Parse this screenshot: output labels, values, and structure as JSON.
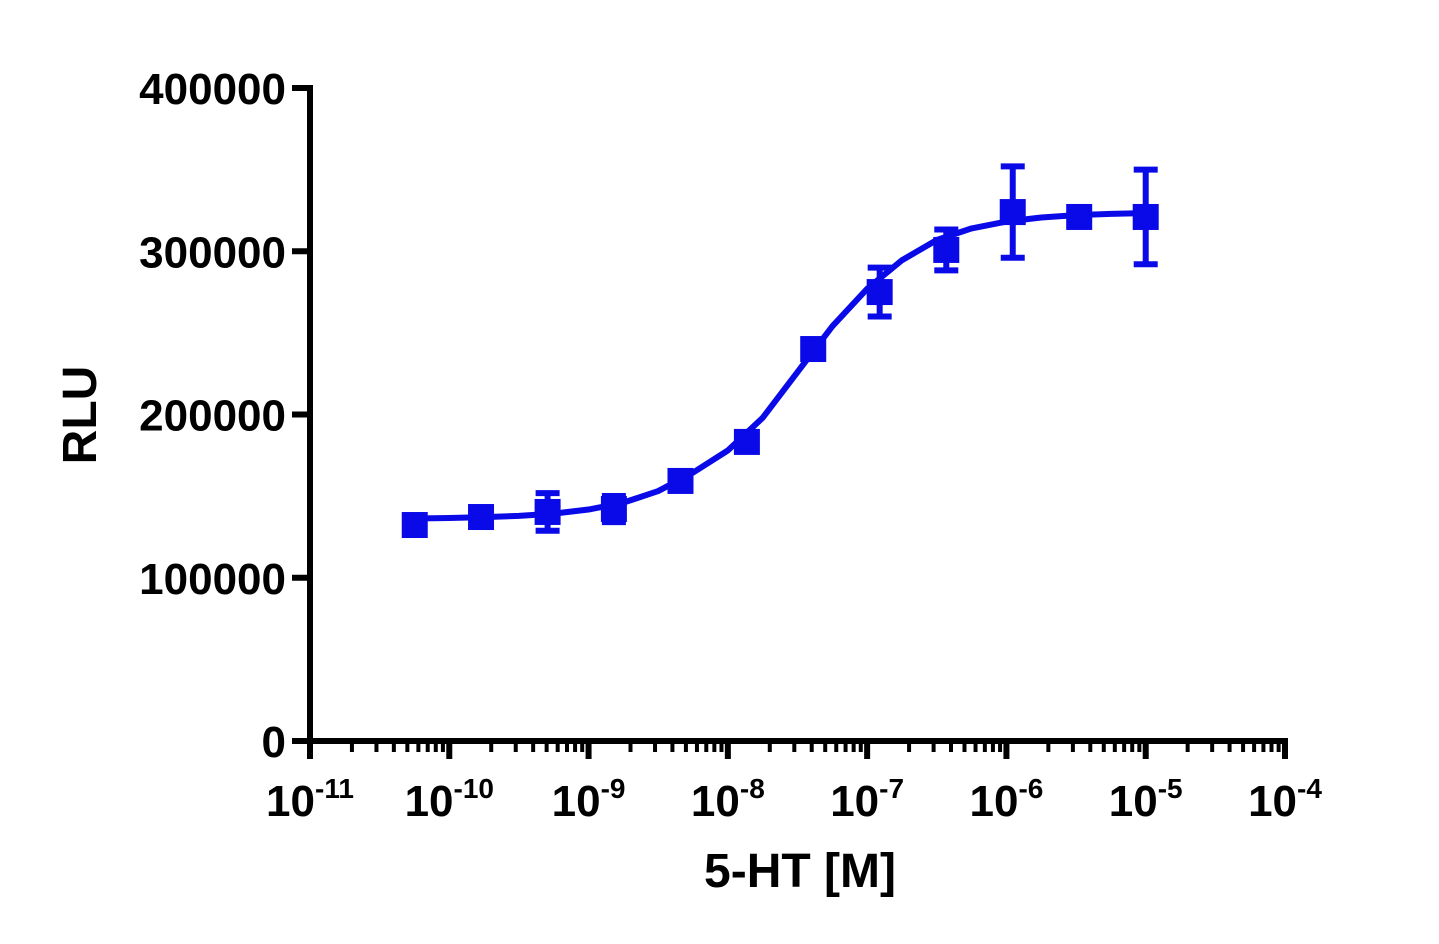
{
  "chart_data": {
    "type": "dose-response",
    "xlabel": "5-HT [M]",
    "ylabel": "RLU",
    "xscale": "log",
    "xlim": [
      1e-11,
      0.0001
    ],
    "xticks": [
      {
        "value": 1e-11,
        "label": "10",
        "exponent": "-11"
      },
      {
        "value": 1e-10,
        "label": "10",
        "exponent": "-10"
      },
      {
        "value": 1e-09,
        "label": "10",
        "exponent": "-9"
      },
      {
        "value": 1e-08,
        "label": "10",
        "exponent": "-8"
      },
      {
        "value": 1e-07,
        "label": "10",
        "exponent": "-7"
      },
      {
        "value": 1e-06,
        "label": "10",
        "exponent": "-6"
      },
      {
        "value": 1e-05,
        "label": "10",
        "exponent": "-5"
      },
      {
        "value": 0.0001,
        "label": "10",
        "exponent": "-4"
      }
    ],
    "xminorticks": [
      2e-11,
      3e-11,
      4e-11,
      5e-11,
      6e-11,
      7e-11,
      8e-11,
      9e-11,
      2e-10,
      3e-10,
      4e-10,
      5e-10,
      6e-10,
      7e-10,
      8e-10,
      9e-10,
      2e-09,
      3e-09,
      4e-09,
      5e-09,
      6e-09,
      7e-09,
      8e-09,
      9e-09,
      2e-08,
      3e-08,
      4e-08,
      5e-08,
      6e-08,
      7e-08,
      8e-08,
      9e-08,
      2e-07,
      3e-07,
      4e-07,
      5e-07,
      6e-07,
      7e-07,
      8e-07,
      9e-07,
      2e-06,
      3e-06,
      4e-06,
      5e-06,
      6e-06,
      7e-06,
      8e-06,
      9e-06,
      2e-05,
      3e-05,
      4e-05,
      5e-05,
      6e-05,
      7e-05,
      8e-05,
      9e-05
    ],
    "ylim": [
      0,
      400000
    ],
    "yticks": [
      0,
      100000,
      200000,
      300000,
      400000
    ],
    "color": "#0a0ae8",
    "points": {
      "x": [
        5.65e-11,
        1.69e-10,
        5.08e-10,
        1.52e-09,
        4.57e-09,
        1.37e-08,
        4.1e-08,
        1.23e-07,
        3.7e-07,
        1.11e-06,
        3.33e-06,
        1e-05
      ],
      "values": [
        132300,
        137200,
        140300,
        142100,
        159300,
        183200,
        240100,
        275000,
        300800,
        324000,
        321000,
        321000
      ],
      "errors": [
        3000,
        3000,
        11500,
        8000,
        3000,
        4000,
        3000,
        15000,
        12500,
        28000,
        2000,
        29000
      ]
    },
    "curve": {
      "x": [
        5.623e-11,
        1e-10,
        1.778e-10,
        3.162e-10,
        5.623e-10,
        1e-09,
        1.778e-09,
        3.162e-09,
        5.623e-09,
        1e-08,
        1.778e-08,
        3.162e-08,
        5.623e-08,
        1e-07,
        1.778e-07,
        3.162e-07,
        5.623e-07,
        1e-06,
        1.778e-06,
        3.162e-06,
        5.623e-06,
        1e-05
      ],
      "values": [
        136300,
        136600,
        137100,
        137900,
        139300,
        141800,
        146000,
        153100,
        164400,
        178000,
        198000,
        226000,
        254000,
        277000,
        294500,
        306900,
        314000,
        318200,
        320700,
        322100,
        322900,
        323400
      ]
    }
  }
}
